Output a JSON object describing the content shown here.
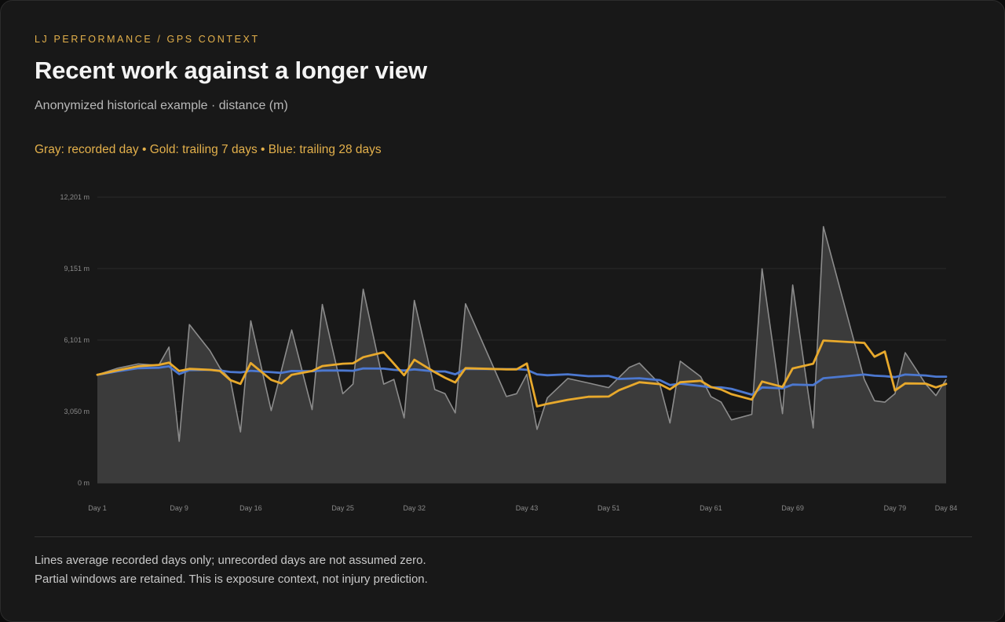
{
  "header": {
    "eyebrow": "LJ PERFORMANCE / GPS CONTEXT",
    "title": "Recent work against a longer view",
    "subtitle": "Anonymized historical example · distance (m)",
    "legend": "Gray: recorded day • Gold: trailing 7 days • Blue: trailing 28 days"
  },
  "footer": {
    "note1": "Lines average recorded days only; unrecorded days are not assumed zero.",
    "note2": "Partial windows are retained. This is exposure context, not injury prediction."
  },
  "colors": {
    "recorded": "#8c8c8c",
    "area": "#3b3b3b",
    "trailing7": "#e8a92c",
    "trailing28": "#4c78d0",
    "grid": "#2a2a2a"
  },
  "chart_data": {
    "type": "line",
    "x_unit": "day",
    "xlim": [
      1,
      84
    ],
    "ylim": [
      0,
      12201
    ],
    "y_ticks": [
      {
        "value": 0,
        "label": "0 m"
      },
      {
        "value": 3050,
        "label": "3,050 m"
      },
      {
        "value": 6101,
        "label": "6,101 m"
      },
      {
        "value": 9151,
        "label": "9,151 m"
      },
      {
        "value": 12201,
        "label": "12,201 m"
      }
    ],
    "x_ticks": [
      {
        "value": 1,
        "label": "Day 1"
      },
      {
        "value": 9,
        "label": "Day 9"
      },
      {
        "value": 16,
        "label": "Day 16"
      },
      {
        "value": 25,
        "label": "Day 25"
      },
      {
        "value": 32,
        "label": "Day 32"
      },
      {
        "value": 43,
        "label": "Day 43"
      },
      {
        "value": 51,
        "label": "Day 51"
      },
      {
        "value": 61,
        "label": "Day 61"
      },
      {
        "value": 69,
        "label": "Day 69"
      },
      {
        "value": 79,
        "label": "Day 79"
      },
      {
        "value": 84,
        "label": "Day 84"
      }
    ],
    "grid": true,
    "series": [
      {
        "key": "recorded",
        "points": [
          [
            1,
            4620
          ],
          [
            3,
            4900
          ],
          [
            5,
            5080
          ],
          [
            7,
            5020
          ],
          [
            8,
            5800
          ],
          [
            9,
            1780
          ],
          [
            10,
            6760
          ],
          [
            12,
            5650
          ],
          [
            13,
            4900
          ],
          [
            14,
            4430
          ],
          [
            15,
            2180
          ],
          [
            16,
            6920
          ],
          [
            18,
            3090
          ],
          [
            20,
            6530
          ],
          [
            22,
            3130
          ],
          [
            23,
            7620
          ],
          [
            25,
            3810
          ],
          [
            26,
            4220
          ],
          [
            27,
            8270
          ],
          [
            29,
            4220
          ],
          [
            30,
            4420
          ],
          [
            31,
            2780
          ],
          [
            32,
            7790
          ],
          [
            34,
            3990
          ],
          [
            35,
            3810
          ],
          [
            36,
            2990
          ],
          [
            37,
            7650
          ],
          [
            41,
            3690
          ],
          [
            42,
            3810
          ],
          [
            43,
            4640
          ],
          [
            44,
            2290
          ],
          [
            45,
            3630
          ],
          [
            47,
            4460
          ],
          [
            49,
            4270
          ],
          [
            51,
            4070
          ],
          [
            53,
            4930
          ],
          [
            54,
            5120
          ],
          [
            56,
            4220
          ],
          [
            57,
            2560
          ],
          [
            58,
            5200
          ],
          [
            60,
            4540
          ],
          [
            61,
            3690
          ],
          [
            62,
            3450
          ],
          [
            63,
            2690
          ],
          [
            65,
            2930
          ],
          [
            66,
            9140
          ],
          [
            68,
            2960
          ],
          [
            69,
            8450
          ],
          [
            71,
            2350
          ],
          [
            72,
            10940
          ],
          [
            76,
            4420
          ],
          [
            77,
            3510
          ],
          [
            78,
            3450
          ],
          [
            79,
            3810
          ],
          [
            80,
            5560
          ],
          [
            82,
            4220
          ],
          [
            83,
            3730
          ],
          [
            84,
            4420
          ]
        ]
      },
      {
        "key": "trailing7",
        "points": [
          [
            1,
            4620
          ],
          [
            3,
            4810
          ],
          [
            5,
            4980
          ],
          [
            7,
            5040
          ],
          [
            8,
            5140
          ],
          [
            9,
            4780
          ],
          [
            10,
            4870
          ],
          [
            12,
            4830
          ],
          [
            13,
            4780
          ],
          [
            14,
            4390
          ],
          [
            15,
            4230
          ],
          [
            16,
            5120
          ],
          [
            18,
            4400
          ],
          [
            19,
            4250
          ],
          [
            20,
            4620
          ],
          [
            22,
            4780
          ],
          [
            23,
            4990
          ],
          [
            25,
            5090
          ],
          [
            26,
            5110
          ],
          [
            27,
            5370
          ],
          [
            29,
            5580
          ],
          [
            30,
            5090
          ],
          [
            31,
            4600
          ],
          [
            32,
            5260
          ],
          [
            34,
            4730
          ],
          [
            35,
            4490
          ],
          [
            36,
            4290
          ],
          [
            37,
            4900
          ],
          [
            41,
            4850
          ],
          [
            42,
            4850
          ],
          [
            43,
            5100
          ],
          [
            44,
            3270
          ],
          [
            45,
            3380
          ],
          [
            47,
            3550
          ],
          [
            49,
            3680
          ],
          [
            51,
            3690
          ],
          [
            52,
            3960
          ],
          [
            54,
            4300
          ],
          [
            56,
            4220
          ],
          [
            57,
            4000
          ],
          [
            58,
            4300
          ],
          [
            60,
            4360
          ],
          [
            61,
            4100
          ],
          [
            62,
            3990
          ],
          [
            63,
            3790
          ],
          [
            65,
            3560
          ],
          [
            66,
            4330
          ],
          [
            68,
            4100
          ],
          [
            69,
            4890
          ],
          [
            71,
            5090
          ],
          [
            72,
            6080
          ],
          [
            76,
            5980
          ],
          [
            77,
            5390
          ],
          [
            78,
            5610
          ],
          [
            79,
            3950
          ],
          [
            80,
            4250
          ],
          [
            82,
            4240
          ],
          [
            83,
            4080
          ],
          [
            84,
            4230
          ]
        ]
      },
      {
        "key": "trailing28",
        "points": [
          [
            1,
            4620
          ],
          [
            3,
            4770
          ],
          [
            5,
            4900
          ],
          [
            7,
            4920
          ],
          [
            8,
            4980
          ],
          [
            9,
            4650
          ],
          [
            10,
            4820
          ],
          [
            12,
            4830
          ],
          [
            13,
            4800
          ],
          [
            14,
            4740
          ],
          [
            15,
            4720
          ],
          [
            16,
            4790
          ],
          [
            18,
            4730
          ],
          [
            19,
            4700
          ],
          [
            20,
            4780
          ],
          [
            22,
            4770
          ],
          [
            23,
            4800
          ],
          [
            25,
            4800
          ],
          [
            26,
            4790
          ],
          [
            27,
            4890
          ],
          [
            29,
            4880
          ],
          [
            30,
            4830
          ],
          [
            31,
            4800
          ],
          [
            32,
            4850
          ],
          [
            34,
            4760
          ],
          [
            35,
            4760
          ],
          [
            36,
            4640
          ],
          [
            37,
            4870
          ],
          [
            41,
            4860
          ],
          [
            42,
            4860
          ],
          [
            43,
            4830
          ],
          [
            44,
            4640
          ],
          [
            45,
            4600
          ],
          [
            47,
            4640
          ],
          [
            49,
            4560
          ],
          [
            51,
            4570
          ],
          [
            52,
            4440
          ],
          [
            54,
            4470
          ],
          [
            56,
            4390
          ],
          [
            57,
            4180
          ],
          [
            58,
            4240
          ],
          [
            60,
            4140
          ],
          [
            61,
            4080
          ],
          [
            62,
            4080
          ],
          [
            63,
            4020
          ],
          [
            65,
            3770
          ],
          [
            66,
            4080
          ],
          [
            68,
            4040
          ],
          [
            69,
            4200
          ],
          [
            71,
            4180
          ],
          [
            72,
            4470
          ],
          [
            76,
            4630
          ],
          [
            77,
            4580
          ],
          [
            78,
            4560
          ],
          [
            79,
            4520
          ],
          [
            80,
            4630
          ],
          [
            82,
            4590
          ],
          [
            83,
            4540
          ],
          [
            84,
            4540
          ]
        ]
      }
    ]
  }
}
